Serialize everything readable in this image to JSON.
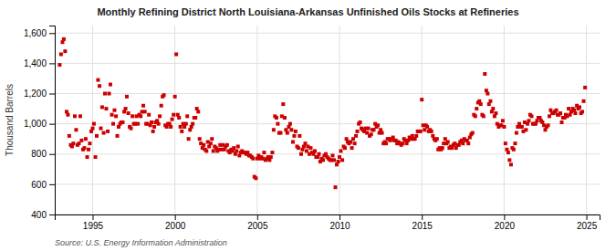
{
  "chart_data": {
    "type": "scatter",
    "title": "Monthly Refining District North Louisiana-Arkansas Unfinished Oils Stocks at Refineries",
    "ylabel": "Thousand Barrels",
    "source": "Source: U.S. Energy Information Administration",
    "color": "#CC0000",
    "marker": "square",
    "grid": true,
    "xlim": [
      1992.7,
      2025.8
    ],
    "xticks": [
      1995,
      2000,
      2005,
      2010,
      2015,
      2020,
      2025
    ],
    "ylim": [
      400,
      1650
    ],
    "yticks": [
      400,
      600,
      800,
      {
        "value": 1000,
        "label": "1,000"
      },
      {
        "value": 1200,
        "label": "1,200"
      },
      {
        "value": 1400,
        "label": "1,400"
      },
      {
        "value": 1600,
        "label": "1,600"
      }
    ],
    "x": [
      1993.0,
      1993.08,
      1993.17,
      1993.25,
      1993.33,
      1993.42,
      1993.5,
      1993.58,
      1993.67,
      1993.75,
      1993.83,
      1993.92,
      1994.0,
      1994.08,
      1994.17,
      1994.25,
      1994.33,
      1994.42,
      1994.5,
      1994.58,
      1994.67,
      1994.75,
      1994.83,
      1994.92,
      1995.0,
      1995.08,
      1995.17,
      1995.25,
      1995.33,
      1995.42,
      1995.5,
      1995.58,
      1995.67,
      1995.75,
      1995.83,
      1995.92,
      1996.0,
      1996.08,
      1996.17,
      1996.25,
      1996.33,
      1996.42,
      1996.5,
      1996.58,
      1996.67,
      1996.75,
      1996.83,
      1996.92,
      1997.0,
      1997.08,
      1997.17,
      1997.25,
      1997.33,
      1997.42,
      1997.5,
      1997.58,
      1997.67,
      1997.75,
      1997.83,
      1997.92,
      1998.0,
      1998.08,
      1998.17,
      1998.25,
      1998.33,
      1998.42,
      1998.5,
      1998.58,
      1998.67,
      1998.75,
      1998.83,
      1998.92,
      1999.0,
      1999.08,
      1999.17,
      1999.25,
      1999.33,
      1999.42,
      1999.5,
      1999.58,
      1999.67,
      1999.75,
      1999.83,
      1999.92,
      2000.0,
      2000.08,
      2000.17,
      2000.25,
      2000.33,
      2000.42,
      2000.5,
      2000.58,
      2000.67,
      2000.75,
      2000.83,
      2000.92,
      2001.0,
      2001.08,
      2001.17,
      2001.25,
      2001.33,
      2001.42,
      2001.5,
      2001.58,
      2001.67,
      2001.75,
      2001.83,
      2001.92,
      2002.0,
      2002.08,
      2002.17,
      2002.25,
      2002.33,
      2002.42,
      2002.5,
      2002.58,
      2002.67,
      2002.75,
      2002.83,
      2002.92,
      2003.0,
      2003.08,
      2003.17,
      2003.25,
      2003.33,
      2003.42,
      2003.5,
      2003.58,
      2003.67,
      2003.75,
      2003.83,
      2003.92,
      2004.0,
      2004.08,
      2004.17,
      2004.25,
      2004.33,
      2004.42,
      2004.5,
      2004.58,
      2004.67,
      2004.75,
      2004.83,
      2004.92,
      2005.0,
      2005.08,
      2005.17,
      2005.25,
      2005.33,
      2005.42,
      2005.5,
      2005.58,
      2005.67,
      2005.75,
      2005.83,
      2005.92,
      2006.0,
      2006.08,
      2006.17,
      2006.25,
      2006.33,
      2006.42,
      2006.5,
      2006.58,
      2006.67,
      2006.75,
      2006.83,
      2006.92,
      2007.0,
      2007.08,
      2007.17,
      2007.25,
      2007.33,
      2007.42,
      2007.5,
      2007.58,
      2007.67,
      2007.75,
      2007.83,
      2007.92,
      2008.0,
      2008.08,
      2008.17,
      2008.25,
      2008.33,
      2008.42,
      2008.5,
      2008.58,
      2008.67,
      2008.75,
      2008.83,
      2008.92,
      2009.0,
      2009.08,
      2009.17,
      2009.25,
      2009.33,
      2009.42,
      2009.5,
      2009.58,
      2009.67,
      2009.75,
      2009.83,
      2009.92,
      2010.0,
      2010.08,
      2010.17,
      2010.25,
      2010.33,
      2010.42,
      2010.5,
      2010.58,
      2010.67,
      2010.75,
      2010.83,
      2010.92,
      2011.0,
      2011.08,
      2011.17,
      2011.25,
      2011.33,
      2011.42,
      2011.5,
      2011.58,
      2011.67,
      2011.75,
      2011.83,
      2011.92,
      2012.0,
      2012.08,
      2012.17,
      2012.25,
      2012.33,
      2012.42,
      2012.5,
      2012.58,
      2012.67,
      2012.75,
      2012.83,
      2012.92,
      2013.0,
      2013.08,
      2013.17,
      2013.25,
      2013.33,
      2013.42,
      2013.5,
      2013.58,
      2013.67,
      2013.75,
      2013.83,
      2013.92,
      2014.0,
      2014.08,
      2014.17,
      2014.25,
      2014.33,
      2014.42,
      2014.5,
      2014.58,
      2014.67,
      2014.75,
      2014.83,
      2014.92,
      2015.0,
      2015.08,
      2015.17,
      2015.25,
      2015.33,
      2015.42,
      2015.5,
      2015.58,
      2015.67,
      2015.75,
      2015.83,
      2015.92,
      2016.0,
      2016.08,
      2016.17,
      2016.25,
      2016.33,
      2016.42,
      2016.5,
      2016.58,
      2016.67,
      2016.75,
      2016.83,
      2016.92,
      2017.0,
      2017.08,
      2017.17,
      2017.25,
      2017.33,
      2017.42,
      2017.5,
      2017.58,
      2017.67,
      2017.75,
      2017.83,
      2017.92,
      2018.0,
      2018.08,
      2018.17,
      2018.25,
      2018.33,
      2018.42,
      2018.5,
      2018.58,
      2018.67,
      2018.75,
      2018.83,
      2018.92,
      2019.0,
      2019.08,
      2019.17,
      2019.25,
      2019.33,
      2019.42,
      2019.5,
      2019.58,
      2019.67,
      2019.75,
      2019.83,
      2019.92,
      2020.0,
      2020.08,
      2020.17,
      2020.25,
      2020.33,
      2020.42,
      2020.5,
      2020.58,
      2020.67,
      2020.75,
      2020.83,
      2020.92,
      2021.0,
      2021.08,
      2021.17,
      2021.25,
      2021.33,
      2021.42,
      2021.5,
      2021.58,
      2021.67,
      2021.75,
      2021.83,
      2021.92,
      2022.0,
      2022.08,
      2022.17,
      2022.25,
      2022.33,
      2022.42,
      2022.5,
      2022.58,
      2022.67,
      2022.75,
      2022.83,
      2022.92,
      2023.0,
      2023.08,
      2023.17,
      2023.25,
      2023.33,
      2023.42,
      2023.5,
      2023.58,
      2023.67,
      2023.75,
      2023.83,
      2023.92,
      2024.0,
      2024.08,
      2024.17,
      2024.25,
      2024.33,
      2024.42,
      2024.5,
      2024.58,
      2024.67,
      2024.75,
      2024.83,
      2024.92
    ],
    "values": [
      1390,
      1460,
      1540,
      1560,
      1480,
      1080,
      1060,
      920,
      860,
      850,
      870,
      1050,
      960,
      860,
      870,
      1050,
      890,
      830,
      840,
      900,
      780,
      830,
      870,
      950,
      970,
      1000,
      780,
      920,
      1290,
      1250,
      970,
      1110,
      940,
      1200,
      1100,
      950,
      1200,
      1260,
      1060,
      1000,
      1090,
      1050,
      920,
      980,
      1000,
      1010,
      1010,
      1080,
      1100,
      1180,
      1070,
      980,
      970,
      1050,
      1000,
      1000,
      1050,
      1000,
      1060,
      1050,
      1080,
      1120,
      1080,
      1000,
      1000,
      1060,
      990,
      1010,
      950,
      980,
      1010,
      1020,
      1000,
      1050,
      1120,
      1180,
      1190,
      990,
      980,
      1000,
      1000,
      980,
      1030,
      1060,
      1180,
      1460,
      1060,
      1040,
      980,
      950,
      1000,
      980,
      1000,
      1050,
      900,
      960,
      980,
      1000,
      1040,
      1040,
      1100,
      1080,
      900,
      870,
      840,
      860,
      830,
      820,
      880,
      850,
      870,
      900,
      820,
      850,
      840,
      820,
      830,
      860,
      830,
      860,
      830,
      850,
      860,
      820,
      810,
      830,
      820,
      840,
      800,
      820,
      850,
      790,
      810,
      820,
      810,
      810,
      800,
      810,
      790,
      790,
      780,
      770,
      650,
      640,
      770,
      790,
      770,
      780,
      770,
      810,
      760,
      770,
      780,
      760,
      780,
      810,
      960,
      1050,
      1040,
      1000,
      940,
      940,
      1050,
      1130,
      1040,
      960,
      940,
      980,
      1000,
      960,
      880,
      920,
      950,
      850,
      840,
      920,
      800,
      830,
      850,
      870,
      820,
      850,
      800,
      840,
      810,
      800,
      820,
      780,
      780,
      800,
      750,
      770,
      760,
      790,
      800,
      780,
      770,
      760,
      760,
      790,
      760,
      580,
      730,
      750,
      780,
      820,
      760,
      850,
      840,
      900,
      880,
      870,
      880,
      840,
      900,
      870,
      920,
      950,
      1000,
      1010,
      970,
      960,
      950,
      970,
      940,
      970,
      920,
      930,
      960,
      960,
      1000,
      980,
      990,
      940,
      960,
      940,
      870,
      880,
      870,
      900,
      900,
      890,
      900,
      910,
      890,
      890,
      870,
      880,
      870,
      860,
      870,
      900,
      890,
      870,
      890,
      910,
      900,
      920,
      900,
      900,
      920,
      950,
      950,
      950,
      1160,
      990,
      960,
      990,
      980,
      950,
      960,
      950,
      920,
      900,
      890,
      900,
      830,
      840,
      830,
      840,
      870,
      900,
      870,
      880,
      840,
      850,
      840,
      860,
      870,
      840,
      860,
      860,
      880,
      890,
      870,
      900,
      890,
      890,
      870,
      910,
      930,
      940,
      1060,
      1050,
      1100,
      1140,
      1150,
      1130,
      1060,
      1050,
      1330,
      1220,
      1200,
      1130,
      1150,
      1080,
      1100,
      1050,
      1070,
      1000,
      980,
      990,
      990,
      1020,
      980,
      870,
      830,
      810,
      760,
      730,
      840,
      830,
      870,
      940,
      980,
      1000,
      980,
      980,
      950,
      1010,
      960,
      1000,
      1020,
      1060,
      1050,
      1000,
      1000,
      1000,
      1020,
      1040,
      1040,
      1020,
      1010,
      990,
      960,
      980,
      990,
      1050,
      1090,
      1070,
      1070,
      1080,
      1090,
      1060,
      1060,
      1070,
      1010,
      1040,
      1040,
      1060,
      1050,
      1100,
      1060,
      1080,
      1100,
      1090,
      1070,
      1120,
      1100,
      1110,
      1070,
      1080,
      1150,
      1240
    ]
  }
}
